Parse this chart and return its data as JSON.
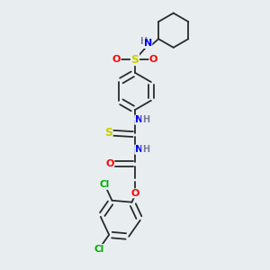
{
  "background_color": "#e8eef0",
  "bond_color": "#2a2a2a",
  "atom_colors": {
    "N": "#0000ee",
    "O": "#ff0000",
    "S": "#cccc00",
    "Cl": "#00aa00",
    "C": "#2a2a2a",
    "H": "#7a7a9a"
  },
  "figsize": [
    3.0,
    3.0
  ],
  "dpi": 100,
  "xlim": [
    0.15,
    0.85
  ],
  "ylim": [
    0.0,
    1.0
  ]
}
